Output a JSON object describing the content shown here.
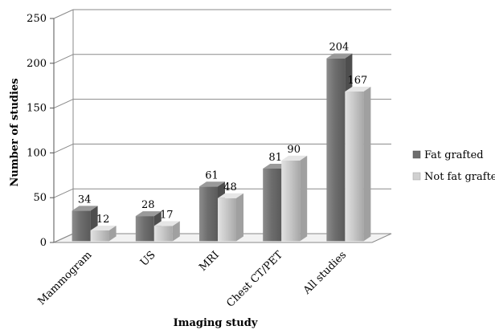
{
  "chart_data": {
    "type": "bar",
    "style": "3d-clustered-column",
    "categories": [
      "Mammogram",
      "US",
      "MRI",
      "Chest CT/PET",
      "All studies"
    ],
    "series": [
      {
        "name": "Fat grafted",
        "values": [
          34,
          28,
          61,
          81,
          204
        ],
        "color": "#7f7f7f"
      },
      {
        "name": "Not fat grafted",
        "values": [
          12,
          17,
          48,
          90,
          167
        ],
        "color": "#c8c8c8"
      }
    ],
    "xlabel": "Imaging study",
    "ylabel": "Number of studies",
    "ylim": [
      0,
      250
    ],
    "yticks": [
      0,
      50,
      100,
      150,
      200,
      250
    ],
    "grid": true,
    "legend": "right"
  }
}
